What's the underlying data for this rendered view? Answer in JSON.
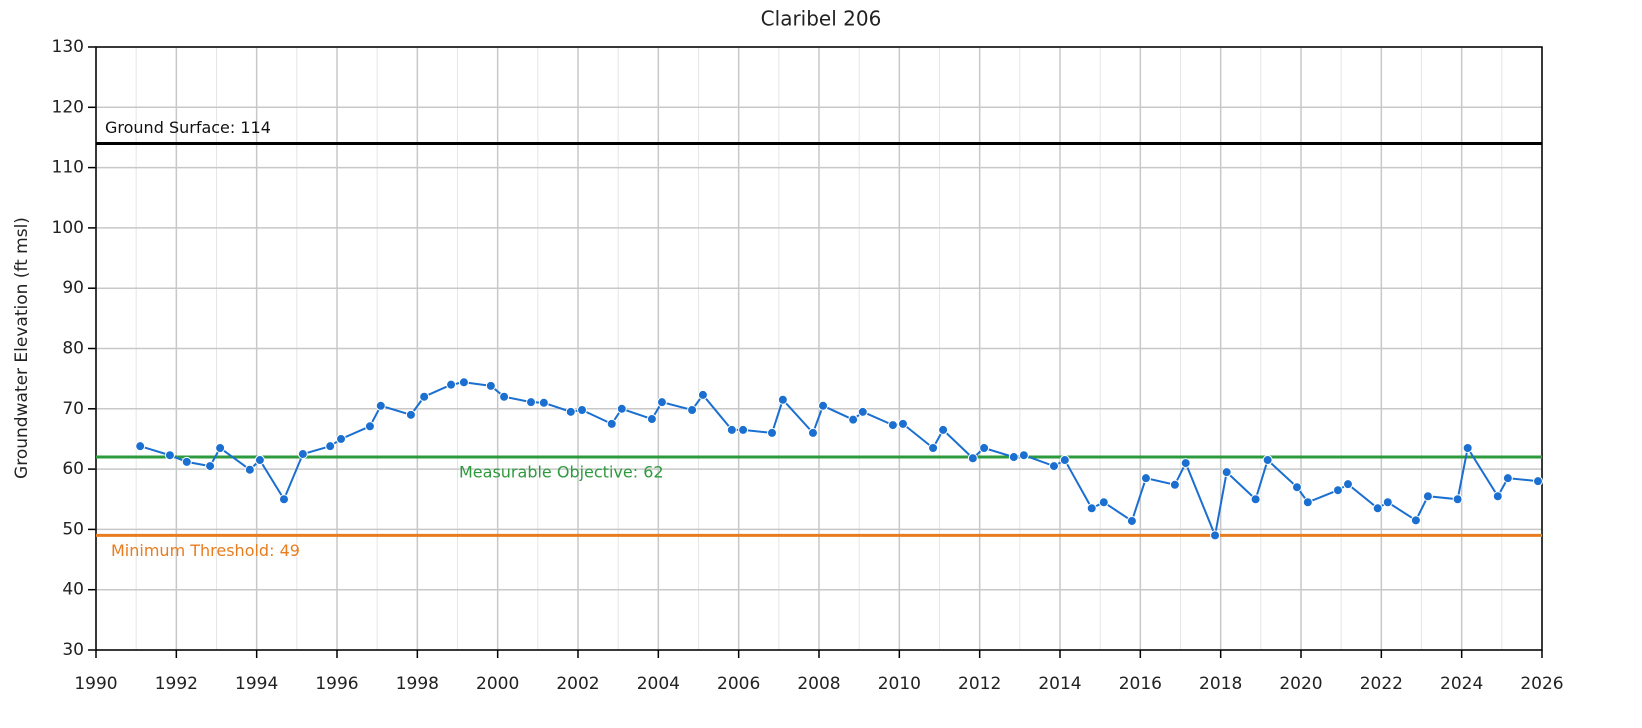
{
  "chart_data": {
    "type": "line",
    "title": "Claribel 206",
    "y_label": "Groundwater Elevation (ft msl)",
    "xlim": [
      1990,
      2026
    ],
    "xticks": [
      1990,
      1992,
      1994,
      1996,
      1998,
      2000,
      2002,
      2004,
      2006,
      2008,
      2010,
      2012,
      2014,
      2016,
      2018,
      2020,
      2022,
      2024,
      2026
    ],
    "ylim": [
      30,
      130
    ],
    "yticks": [
      30,
      40,
      50,
      60,
      70,
      80,
      90,
      100,
      110,
      120,
      130
    ],
    "grid": true,
    "reference_lines": [
      {
        "label": "Ground Surface: 114",
        "value": 114,
        "color": "#000000"
      },
      {
        "label": "Measurable Objective: 62",
        "value": 62,
        "color": "#2e9a3e"
      },
      {
        "label": "Minimum Threshold: 49",
        "value": 49,
        "color": "#e87d1e"
      }
    ],
    "series": [
      {
        "color": "#1a6fd0",
        "x": [
          1991.1,
          1991.84,
          1992.26,
          1992.84,
          1993.09,
          1993.83,
          1994.08,
          1994.68,
          1995.15,
          1995.83,
          1996.1,
          1996.82,
          1997.09,
          1997.84,
          1998.17,
          1998.84,
          1999.16,
          1999.83,
          2000.16,
          2000.83,
          2001.15,
          2001.82,
          2002.1,
          2002.84,
          2003.09,
          2003.84,
          2004.09,
          2004.84,
          2005.11,
          2005.83,
          2006.11,
          2006.83,
          2007.1,
          2007.85,
          2008.1,
          2008.85,
          2009.09,
          2009.84,
          2010.09,
          2010.84,
          2011.09,
          2011.83,
          2012.11,
          2012.85,
          2013.1,
          2013.85,
          2014.12,
          2014.79,
          2015.09,
          2015.79,
          2016.14,
          2016.86,
          2017.13,
          2017.86,
          2018.15,
          2018.87,
          2019.17,
          2019.9,
          2020.17,
          2020.92,
          2021.17,
          2021.91,
          2022.16,
          2022.86,
          2023.16,
          2023.9,
          2024.15,
          2024.9,
          2025.15,
          2025.9
        ],
        "values": [
          63.8,
          62.3,
          61.2,
          60.5,
          63.5,
          59.9,
          61.5,
          55.0,
          62.5,
          63.8,
          65.0,
          67.1,
          70.5,
          69.0,
          72.0,
          74.0,
          74.4,
          73.8,
          72.0,
          71.1,
          71.0,
          69.5,
          69.8,
          67.5,
          70.0,
          68.3,
          71.1,
          69.8,
          72.3,
          66.5,
          66.5,
          66.0,
          71.5,
          66.0,
          70.5,
          68.2,
          69.5,
          67.3,
          67.5,
          63.5,
          66.5,
          61.8,
          63.5,
          62.0,
          62.3,
          60.5,
          61.5,
          53.5,
          54.5,
          51.4,
          58.5,
          57.4,
          61.0,
          49.0,
          59.5,
          55.0,
          61.5,
          57.0,
          54.5,
          56.5,
          57.5,
          53.5,
          54.5,
          51.5,
          55.5,
          55.0,
          63.5,
          55.5,
          58.5,
          58.0
        ]
      }
    ]
  }
}
